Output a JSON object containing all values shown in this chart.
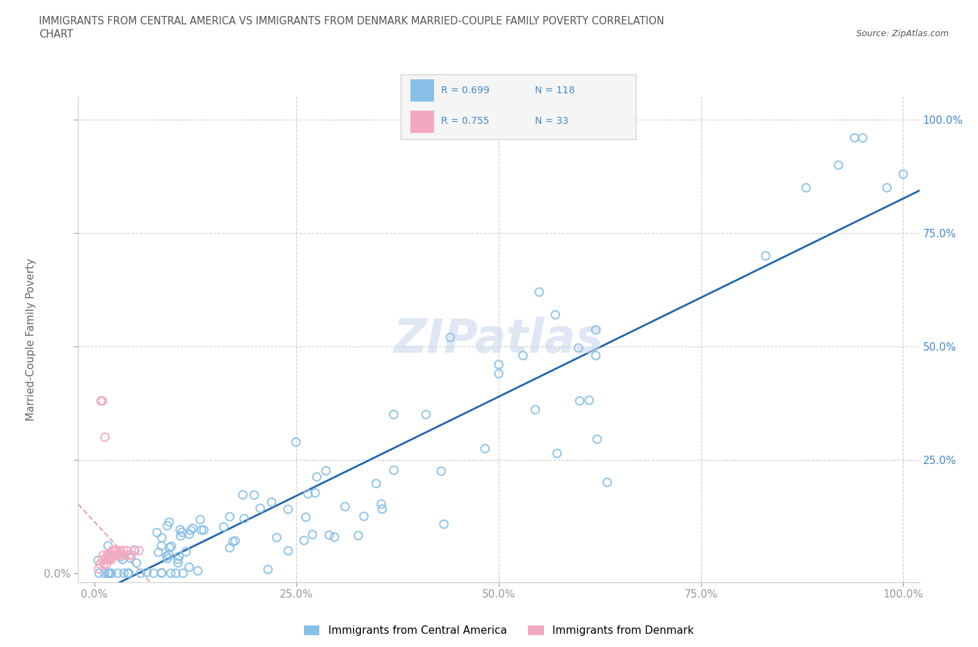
{
  "title_line1": "IMMIGRANTS FROM CENTRAL AMERICA VS IMMIGRANTS FROM DENMARK MARRIED-COUPLE FAMILY POVERTY CORRELATION",
  "title_line2": "CHART",
  "source_text": "Source: ZipAtlas.com",
  "ylabel": "Married-Couple Family Poverty",
  "xlim": [
    -0.02,
    1.02
  ],
  "ylim": [
    -0.02,
    1.05
  ],
  "xticks": [
    0.0,
    0.25,
    0.5,
    0.75,
    1.0
  ],
  "yticks": [
    0.0,
    0.25,
    0.5,
    0.75,
    1.0
  ],
  "xticklabels": [
    "0.0%",
    "25.0%",
    "50.0%",
    "75.0%",
    "100.0%"
  ],
  "right_ytick_labels": [
    "25.0%",
    "50.0%",
    "75.0%",
    "100.0%"
  ],
  "right_ytick_vals": [
    0.25,
    0.5,
    0.75,
    1.0
  ],
  "color_central": "#88c0e8",
  "color_denmark": "#f4a8c0",
  "color_trend_central": "#2166ac",
  "color_trend_denmark": "#e8a0b8",
  "R_central": 0.699,
  "N_central": 118,
  "R_denmark": 0.755,
  "N_denmark": 33,
  "watermark": "ZIPatlas",
  "legend_label_central": "Immigrants from Central America",
  "legend_label_denmark": "Immigrants from Denmark",
  "background_color": "#ffffff",
  "grid_color": "#cccccc",
  "title_color": "#555555",
  "axis_label_color": "#666666",
  "tick_color": "#999999",
  "right_tick_color": "#4488cc",
  "legend_text_color": "#333333",
  "legend_R_color": "#4488cc",
  "trend_central_intercept": 0.0,
  "trend_central_slope": 0.68,
  "trend_denmark_intercept": 0.0,
  "trend_denmark_slope": 3.5
}
